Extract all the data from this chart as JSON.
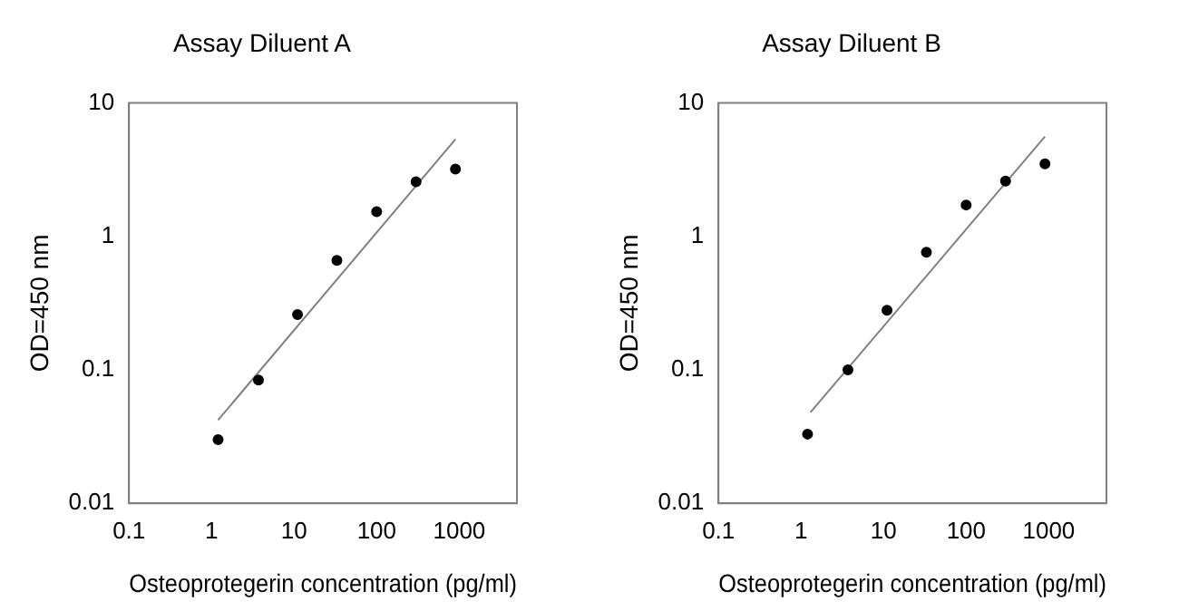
{
  "chart_data": [
    {
      "type": "scatter",
      "title": "Assay Diluent A",
      "xlabel": "Osteoprotegerin concentration (pg/ml)",
      "ylabel": "OD=450 nm",
      "log": "xy",
      "grid": false,
      "legend": false,
      "xlim": [
        0.1,
        5000
      ],
      "ylim": [
        0.01,
        10
      ],
      "xticks": [
        0.1,
        1,
        10,
        100,
        1000
      ],
      "yticks": [
        0.01,
        0.1,
        1,
        10
      ],
      "x": [
        1.2,
        3.7,
        11,
        33,
        100,
        300,
        900
      ],
      "series": [
        {
          "type": "scatter",
          "marker": "circle",
          "color": "#000000",
          "values": [
            0.03,
            0.084,
            0.26,
            0.66,
            1.53,
            2.57,
            3.2
          ]
        },
        {
          "type": "line",
          "marker": "none",
          "color": "#808080",
          "x": [
            1.2,
            900
          ],
          "values": [
            0.042,
            5.35
          ]
        }
      ]
    },
    {
      "type": "scatter",
      "title": "Assay Diluent B",
      "xlabel": "Osteoprotegerin concentration (pg/ml)",
      "ylabel": "OD=450 nm",
      "log": "xy",
      "grid": false,
      "legend": false,
      "xlim": [
        0.1,
        5000
      ],
      "ylim": [
        0.01,
        10
      ],
      "xticks": [
        0.1,
        1,
        10,
        100,
        1000
      ],
      "yticks": [
        0.01,
        0.1,
        1,
        10
      ],
      "x": [
        1.2,
        3.7,
        11,
        33,
        100,
        300,
        900
      ],
      "series": [
        {
          "type": "scatter",
          "marker": "circle",
          "color": "#000000",
          "values": [
            0.033,
            0.1,
            0.28,
            0.76,
            1.72,
            2.6,
            3.5
          ]
        },
        {
          "type": "line",
          "marker": "none",
          "color": "#808080",
          "x": [
            1.3,
            900
          ],
          "values": [
            0.048,
            5.6
          ]
        }
      ]
    }
  ]
}
